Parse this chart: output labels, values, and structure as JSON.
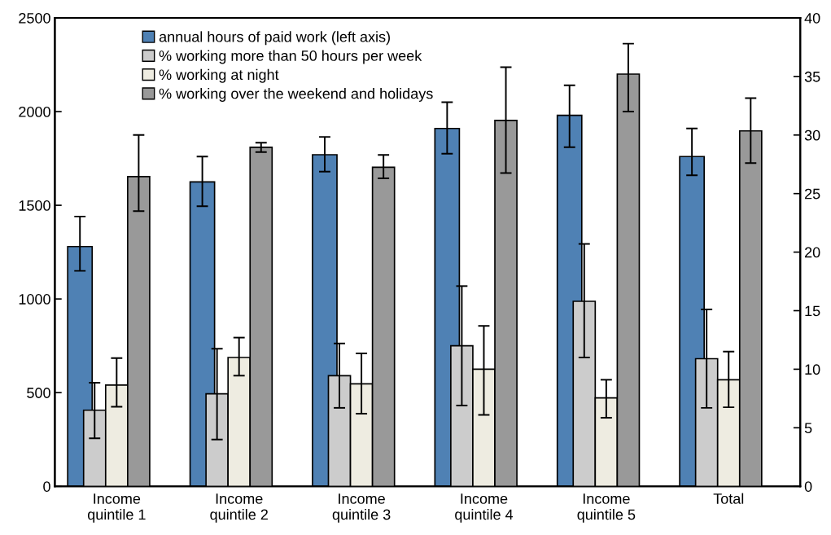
{
  "chart_data": {
    "type": "bar",
    "categories": [
      "Income\nquintile 1",
      "Income\nquintile 2",
      "Income\nquintile 3",
      "Income\nquintile 4",
      "Income\nquintile 5",
      "Total"
    ],
    "series": [
      {
        "name": "annual hours of paid work (left axis)",
        "color": "#4f81b4",
        "values": [
          1280,
          1625,
          1770,
          1910,
          1980,
          1760
        ],
        "errors": [
          [
            1150,
            1440
          ],
          [
            1495,
            1760
          ],
          [
            1680,
            1865
          ],
          [
            1775,
            2050
          ],
          [
            1810,
            2140
          ],
          [
            1660,
            1910
          ]
        ]
      },
      {
        "name": "% working more than 50 hours per week",
        "color": "#cccccc",
        "axis": "y2",
        "values": [
          6.5,
          7.9,
          9.45,
          12.0,
          15.8,
          10.9
        ],
        "errors": [
          [
            4.1,
            8.85
          ],
          [
            4.0,
            11.75
          ],
          [
            6.7,
            12.2
          ],
          [
            6.9,
            17.1
          ],
          [
            11.0,
            20.7
          ],
          [
            6.7,
            15.1
          ]
        ]
      },
      {
        "name": "% working at night",
        "color": "#eeece1",
        "axis": "y2",
        "values": [
          8.65,
          11.0,
          8.75,
          10.0,
          7.55,
          9.1
        ],
        "errors": [
          [
            6.8,
            10.95
          ],
          [
            9.45,
            12.7
          ],
          [
            6.2,
            11.35
          ],
          [
            6.1,
            13.7
          ],
          [
            5.85,
            9.1
          ],
          [
            6.75,
            11.5
          ]
        ]
      },
      {
        "name": "% working over the weekend and holidays",
        "color": "#999999",
        "axis": "y2",
        "values": [
          26.45,
          28.95,
          27.25,
          31.25,
          35.2,
          30.35
        ],
        "errors": [
          [
            23.5,
            30.0
          ],
          [
            28.55,
            29.35
          ],
          [
            26.3,
            28.3
          ],
          [
            26.75,
            35.8
          ],
          [
            32.0,
            37.8
          ],
          [
            27.6,
            33.15
          ]
        ]
      }
    ],
    "ylim": [
      0,
      2500
    ],
    "yticks": [
      0,
      500,
      1000,
      1500,
      2000,
      2500
    ],
    "y2lim": [
      0,
      40
    ],
    "y2ticks": [
      0,
      5,
      10,
      15,
      20,
      25,
      30,
      35,
      40
    ],
    "grid": false,
    "legend": "top left"
  }
}
